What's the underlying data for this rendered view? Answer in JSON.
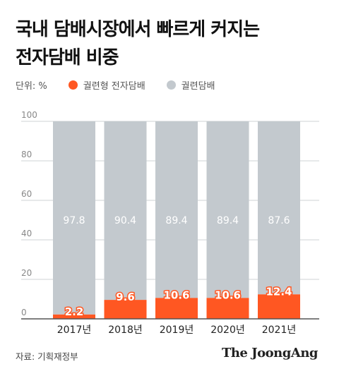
{
  "title_line1": "국내 담배시장에서 빠르게 커지는",
  "title_line2": "전자담배 비중",
  "unit_label": "단위: %",
  "source": "자료: 기획재정부",
  "brand": "The JoongAng",
  "colors": {
    "e_cig": "#ff5722",
    "cigarette": "#c3c9ce",
    "grid": "#cfd3d6",
    "axis": "#555555"
  },
  "chart_data": {
    "type": "bar",
    "stacked": true,
    "categories": [
      "2017년",
      "2018년",
      "2019년",
      "2020년",
      "2021년"
    ],
    "series": [
      {
        "name": "궐련형 전자담배",
        "values": [
          2.2,
          9.6,
          10.6,
          10.6,
          12.4
        ],
        "value_labels": [
          "2.2",
          "9.6",
          "10.6",
          "10.6",
          "12.4"
        ]
      },
      {
        "name": "궐련담배",
        "values": [
          97.8,
          90.4,
          89.4,
          89.4,
          87.6
        ],
        "value_labels": [
          "97.8",
          "90.4",
          "89.4",
          "89.4",
          "87.6"
        ]
      }
    ],
    "yticks": [
      0,
      20,
      40,
      60,
      80,
      100
    ],
    "ylim": [
      0,
      100
    ],
    "legend": "top-left",
    "grid": true
  }
}
